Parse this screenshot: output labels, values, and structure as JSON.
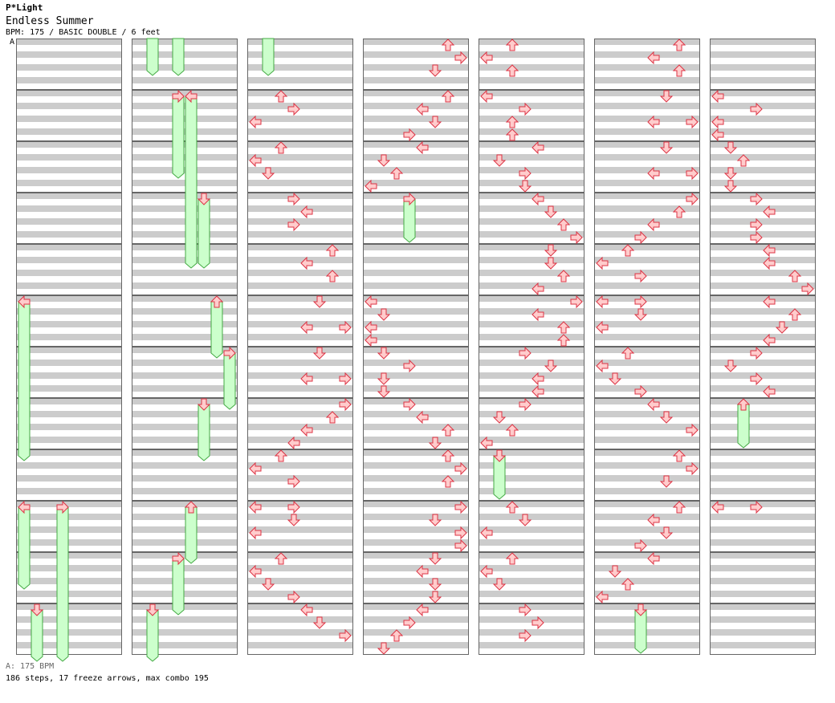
{
  "header": {
    "site": "P*Light",
    "song": "Endless Summer",
    "info": "BPM: 175 / BASIC DOUBLE / 6 feet",
    "bpm_marker": "A"
  },
  "footer": {
    "legend": "A: 175 BPM",
    "stats": "186 steps, 17 freeze arrows, max combo 195"
  },
  "colors": {
    "stripe": "#cccccc",
    "arrow_fill": "#ffcccc",
    "arrow_stroke": "#dd3344",
    "freeze_fill": "#ccffcc",
    "freeze_stroke": "#44aa44",
    "border": "#666666",
    "bpm_line": "#5599ee"
  },
  "chart": {
    "lanes": [
      "left",
      "down",
      "up",
      "right",
      "left",
      "down",
      "up",
      "right"
    ],
    "measures": 84
  }
}
